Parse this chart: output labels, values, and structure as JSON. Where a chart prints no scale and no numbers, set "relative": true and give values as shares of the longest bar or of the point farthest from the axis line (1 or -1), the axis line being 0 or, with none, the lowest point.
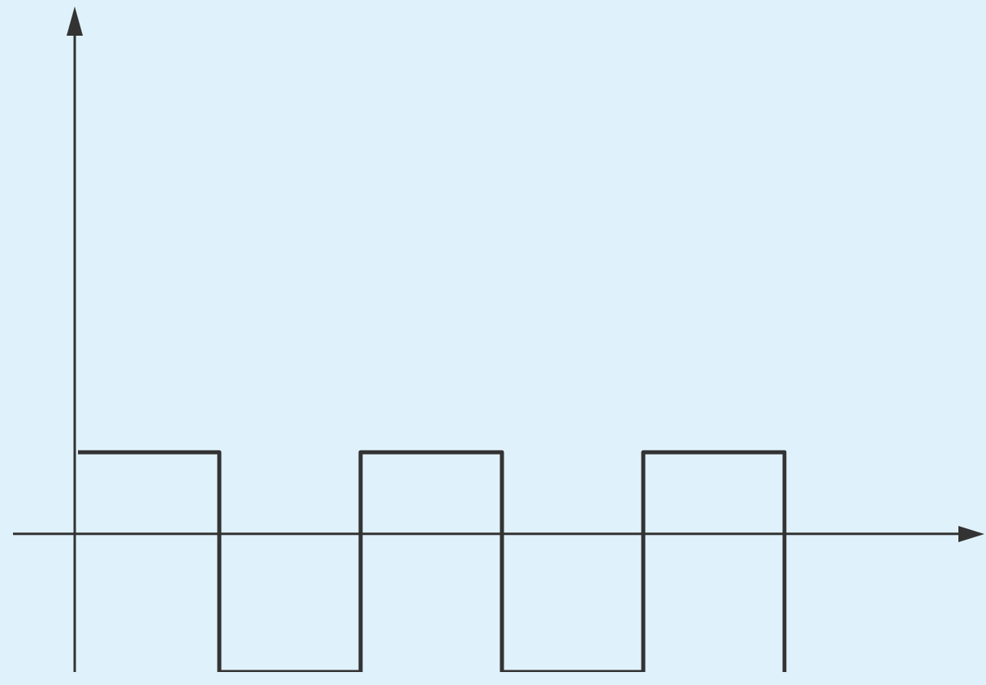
{
  "chart_data": {
    "type": "step",
    "relative": true,
    "categories": [
      null,
      null,
      null,
      null,
      null,
      null
    ],
    "series": [
      {
        "color": "#333333",
        "values": [
          0.59,
          -1,
          0.59,
          -1,
          0.59,
          -1
        ]
      }
    ]
  }
}
